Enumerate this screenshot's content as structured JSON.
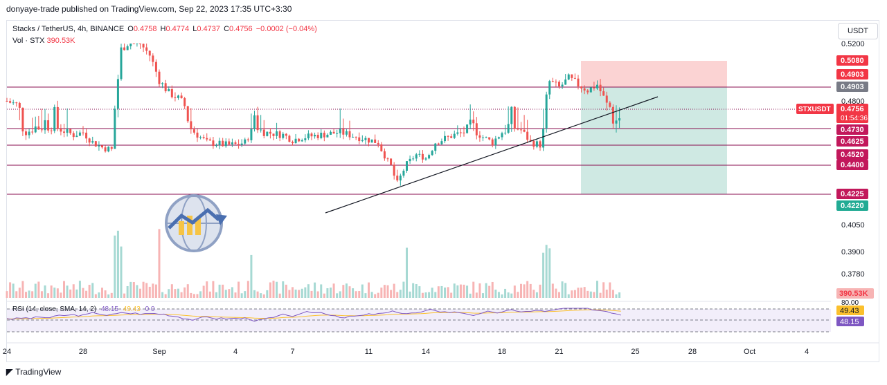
{
  "header": {
    "publisher_line": "donyaye-trade published on TradingView.com, Sep 22, 2023 17:35 UTC+3:30"
  },
  "legend": {
    "symbol_line": "Stacks / TetherUS, 4h, BINANCE",
    "open_label": "O",
    "open": "0.4758",
    "high_label": "H",
    "high": "0.4774",
    "low_label": "L",
    "low": "0.4737",
    "close_label": "C",
    "close": "0.4756",
    "change": "−0.0002 (−0.04%)",
    "volume_label": "Vol · STX",
    "volume": "390.53K"
  },
  "rsi_legend": {
    "label": "RSI (14, close, SMA, 14, 2)",
    "rsi": "48.15",
    "sma": "49.43",
    "extra": "0  0"
  },
  "currency_button": "USDT",
  "footer": {
    "brand": "TradingView"
  },
  "colors": {
    "up": "#26a69a",
    "down": "#ef5350",
    "level_line": "#880e4f",
    "rsi": "#7e57c2",
    "rsi_sma": "#fbc02d",
    "stop_zone": "#fbd3d3",
    "target_zone": "#cfe9e3"
  },
  "chart_data": {
    "type": "candlestick",
    "symbol": "STXUSDT",
    "timeframe": "4h",
    "price_axis": {
      "ticks": [
        "0.5200",
        "0.4800",
        "0.4050",
        "0.3900",
        "0.3780"
      ],
      "range": [
        0.37,
        0.53
      ]
    },
    "time_axis": {
      "ticks": [
        "24",
        "28",
        "Sep",
        "4",
        "7",
        "11",
        "14",
        "18",
        "21",
        "25",
        "28",
        "Oct",
        "4"
      ]
    },
    "horizontal_levels": [
      0.4903,
      0.473,
      0.4625,
      0.452,
      0.44,
      0.4225
    ],
    "price_labels": [
      {
        "text": "0.5080",
        "value": 0.508,
        "kind": "stop"
      },
      {
        "text": "0.4903",
        "value": 0.4903,
        "kind": "level"
      },
      {
        "text": "0.4903",
        "value": 0.4903,
        "kind": "level-gray"
      },
      {
        "text": "0.4756",
        "value": 0.4756,
        "kind": "last",
        "symbol_tag": "STXUSDT",
        "countdown": "01:54:36"
      },
      {
        "text": "0.4730",
        "value": 0.473,
        "kind": "level"
      },
      {
        "text": "0.4625",
        "value": 0.4625,
        "kind": "level"
      },
      {
        "text": "0.4520",
        "value": 0.452,
        "kind": "level"
      },
      {
        "text": "0.4400",
        "value": 0.44,
        "kind": "level"
      },
      {
        "text": "0.4225",
        "value": 0.4225,
        "kind": "level"
      },
      {
        "text": "0.4220",
        "value": 0.422,
        "kind": "target"
      }
    ],
    "volume_label": "390.53K",
    "rsi_axis": {
      "ticks": [
        "80.00"
      ],
      "labels": [
        {
          "text": "49.43",
          "kind": "sma"
        },
        {
          "text": "48.15",
          "kind": "rsi"
        }
      ]
    },
    "position": {
      "entry": 0.4903,
      "stop": 0.508,
      "target": 0.422
    },
    "trendline": {
      "from": [
        11.0,
        0.42
      ],
      "to": [
        26.5,
        0.487
      ]
    },
    "anchor_closes": [
      [
        23.5,
        0.48
      ],
      [
        24.0,
        0.478
      ],
      [
        24.5,
        0.47
      ],
      [
        25.0,
        0.473
      ],
      [
        26.0,
        0.474
      ],
      [
        27.0,
        0.468
      ],
      [
        27.5,
        0.47
      ],
      [
        28.0,
        0.462
      ],
      [
        28.5,
        0.458
      ],
      [
        29.0,
        0.456
      ],
      [
        29.5,
        0.516
      ],
      [
        30.0,
        0.522
      ],
      [
        30.5,
        0.52
      ],
      [
        31.0,
        0.512
      ],
      [
        31.5,
        0.495
      ],
      [
        32.0,
        0.486
      ],
      [
        32.5,
        0.482
      ],
      [
        33.0,
        0.475
      ],
      [
        33.5,
        0.468
      ],
      [
        34.0,
        0.462
      ],
      [
        35.0,
        0.46
      ],
      [
        35.5,
        0.46
      ],
      [
        36.0,
        0.462
      ],
      [
        36.5,
        0.475
      ],
      [
        37.0,
        0.47
      ],
      [
        38.0,
        0.468
      ],
      [
        38.5,
        0.464
      ],
      [
        39.0,
        0.466
      ],
      [
        40.0,
        0.468
      ],
      [
        41.0,
        0.47
      ],
      [
        42.0,
        0.466
      ],
      [
        43.0,
        0.462
      ],
      [
        43.5,
        0.445
      ],
      [
        44.0,
        0.428
      ],
      [
        44.5,
        0.442
      ],
      [
        45.0,
        0.452
      ],
      [
        45.5,
        0.448
      ],
      [
        46.0,
        0.462
      ],
      [
        47.0,
        0.468
      ],
      [
        48.0,
        0.472
      ],
      [
        48.5,
        0.466
      ],
      [
        49.0,
        0.462
      ],
      [
        49.5,
        0.47
      ],
      [
        50.0,
        0.474
      ],
      [
        50.5,
        0.472
      ],
      [
        51.0,
        0.462
      ],
      [
        51.5,
        0.46
      ],
      [
        52.0,
        0.494
      ],
      [
        52.5,
        0.49
      ],
      [
        53.0,
        0.496
      ],
      [
        53.5,
        0.492
      ],
      [
        54.0,
        0.488
      ],
      [
        54.5,
        0.492
      ],
      [
        55.0,
        0.478
      ],
      [
        55.5,
        0.474
      ],
      [
        55.8,
        0.4756
      ]
    ]
  }
}
